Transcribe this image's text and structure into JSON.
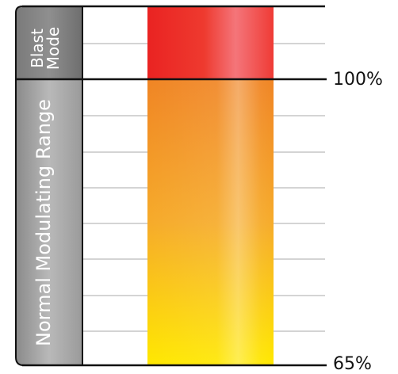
{
  "zones": {
    "blast": {
      "line1": "Blast",
      "line2": "Mode"
    },
    "normal": {
      "label": "Normal Modulating Range"
    }
  },
  "markers": {
    "top": "100%",
    "bottom": "65%"
  },
  "colors": {
    "blast_red": "#ee2a26",
    "orange": "#f08a26",
    "yellow": "#ffe600",
    "panel_gray": "#8a8a8a",
    "panel_dark": "#4a4a4a",
    "grid_line": "#999999",
    "rule_line": "#111111"
  }
}
